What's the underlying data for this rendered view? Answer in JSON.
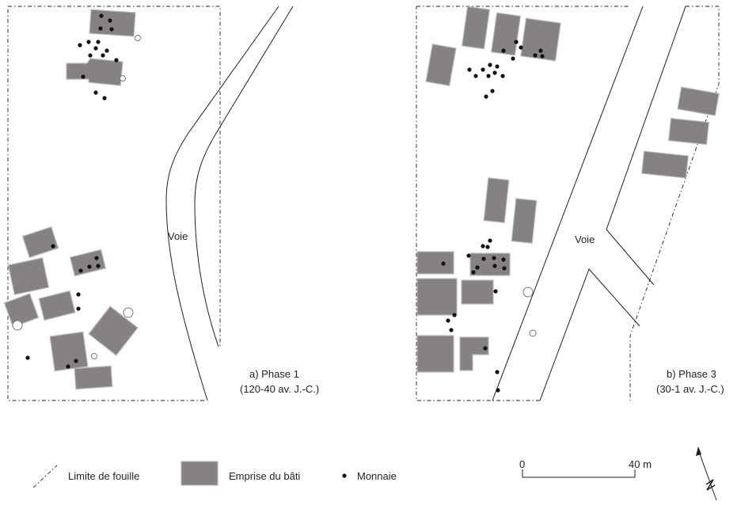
{
  "panels": [
    {
      "phase_label": "a) Phase 1",
      "date_label": "(120-40 av. J.-C.)",
      "road_label": "Voie"
    },
    {
      "phase_label": "b) Phase 3",
      "date_label": "(30-1 av. J.-C.)",
      "road_label": "Voie"
    }
  ],
  "legend": {
    "limit_label": "Limite de fouille",
    "building_label": "Emprise du bâti",
    "coin_label": "Monnaie"
  },
  "scale": {
    "start_label": "0",
    "end_label": "40 m"
  },
  "colors": {
    "building_fill": "#868283",
    "building_stroke": "#b9b6b7",
    "coin": "#111111",
    "lines": "#231f20"
  },
  "north_arrow_icon": "north-arrow-icon"
}
